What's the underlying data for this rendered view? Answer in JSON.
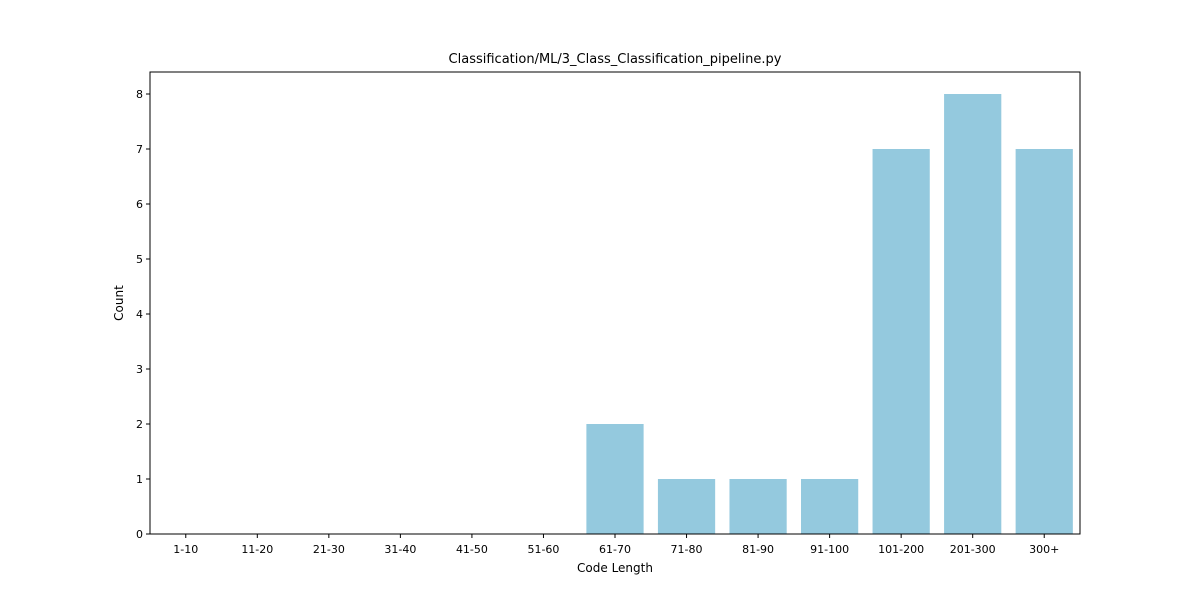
{
  "chart_data": {
    "type": "bar",
    "title": "Classification/ML/3_Class_Classification_pipeline.py",
    "xlabel": "Code Length",
    "ylabel": "Count",
    "categories": [
      "1-10",
      "11-20",
      "21-30",
      "31-40",
      "41-50",
      "51-60",
      "61-70",
      "71-80",
      "81-90",
      "91-100",
      "101-200",
      "201-300",
      "300+"
    ],
    "values": [
      0,
      0,
      0,
      0,
      0,
      0,
      2,
      1,
      1,
      1,
      7,
      8,
      7
    ],
    "ylim": [
      0,
      8.4
    ],
    "yticks": [
      0,
      1,
      2,
      3,
      4,
      5,
      6,
      7,
      8
    ],
    "grid": false,
    "bar_color": "#94c9de"
  }
}
